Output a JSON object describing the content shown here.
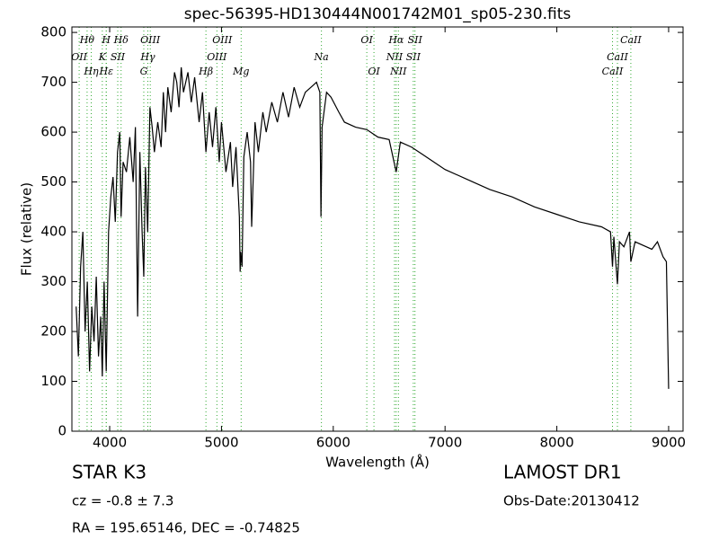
{
  "chart_data": {
    "type": "line",
    "title": "spec-56395-HD130444N001742M01_sp05-230.fits",
    "x_label": "Wavelength (Å)",
    "y_label": "Flux (relative)",
    "xlim": [
      3662,
      9129
    ],
    "ylim": [
      0,
      811
    ],
    "xticks": [
      4000,
      5000,
      6000,
      7000,
      8000,
      9000
    ],
    "yticks": [
      0,
      100,
      200,
      300,
      400,
      500,
      600,
      700,
      800
    ],
    "series": [
      {
        "color": "#000000",
        "x": [
          3700,
          3720,
          3740,
          3760,
          3780,
          3800,
          3820,
          3840,
          3860,
          3880,
          3900,
          3920,
          3934,
          3950,
          3969,
          3990,
          4010,
          4030,
          4050,
          4070,
          4090,
          4102,
          4120,
          4150,
          4180,
          4210,
          4230,
          4250,
          4270,
          4290,
          4305,
          4320,
          4340,
          4360,
          4380,
          4400,
          4430,
          4460,
          4480,
          4500,
          4520,
          4550,
          4580,
          4600,
          4620,
          4640,
          4660,
          4700,
          4730,
          4760,
          4800,
          4830,
          4861,
          4890,
          4920,
          4950,
          4980,
          5000,
          5040,
          5080,
          5100,
          5130,
          5160,
          5167,
          5172,
          5184,
          5200,
          5230,
          5260,
          5270,
          5300,
          5330,
          5370,
          5400,
          5450,
          5500,
          5550,
          5600,
          5650,
          5700,
          5750,
          5800,
          5850,
          5880,
          5890,
          5900,
          5940,
          5980,
          6050,
          6100,
          6200,
          6300,
          6400,
          6500,
          6563,
          6600,
          6700,
          6800,
          6900,
          7000,
          7200,
          7400,
          7600,
          7800,
          8000,
          8200,
          8400,
          8480,
          8498,
          8510,
          8542,
          8560,
          8600,
          8650,
          8662,
          8700,
          8800,
          8850,
          8900,
          8950,
          8980,
          9000
        ],
        "values": [
          250,
          150,
          330,
          400,
          200,
          300,
          120,
          250,
          180,
          310,
          150,
          230,
          110,
          300,
          120,
          400,
          470,
          510,
          420,
          560,
          600,
          430,
          540,
          520,
          590,
          500,
          610,
          230,
          560,
          400,
          310,
          530,
          400,
          650,
          610,
          560,
          620,
          570,
          680,
          600,
          690,
          640,
          720,
          700,
          650,
          730,
          680,
          720,
          660,
          710,
          620,
          680,
          560,
          640,
          570,
          650,
          540,
          620,
          520,
          580,
          490,
          570,
          430,
          320,
          360,
          330,
          550,
          600,
          540,
          410,
          620,
          560,
          640,
          600,
          660,
          620,
          680,
          630,
          690,
          650,
          680,
          690,
          700,
          680,
          430,
          610,
          680,
          670,
          640,
          620,
          610,
          605,
          590,
          585,
          520,
          580,
          570,
          555,
          540,
          525,
          505,
          485,
          470,
          450,
          435,
          420,
          410,
          400,
          330,
          390,
          295,
          380,
          370,
          400,
          340,
          380,
          370,
          365,
          380,
          350,
          340,
          85
        ]
      }
    ],
    "lines": [
      {
        "name": "OII",
        "wavelength": 3727
      },
      {
        "name": "Hθ",
        "wavelength": 3798
      },
      {
        "name": "Hη",
        "wavelength": 3835
      },
      {
        "name": "K",
        "wavelength": 3934
      },
      {
        "name": "H",
        "wavelength": 3969
      },
      {
        "name": "Hε",
        "wavelength": 3970
      },
      {
        "name": "SII",
        "wavelength": 4072
      },
      {
        "name": "Hδ",
        "wavelength": 4102
      },
      {
        "name": "G",
        "wavelength": 4305
      },
      {
        "name": "Hγ",
        "wavelength": 4341
      },
      {
        "name": "OIII",
        "wavelength": 4363
      },
      {
        "name": "Hβ",
        "wavelength": 4861
      },
      {
        "name": "OIII",
        "wavelength": 4959
      },
      {
        "name": "OIII",
        "wavelength": 5007
      },
      {
        "name": "Mg",
        "wavelength": 5176
      },
      {
        "name": "Na",
        "wavelength": 5894
      },
      {
        "name": "OI",
        "wavelength": 6300
      },
      {
        "name": "OI",
        "wavelength": 6364
      },
      {
        "name": "NII",
        "wavelength": 6548
      },
      {
        "name": "Hα",
        "wavelength": 6563
      },
      {
        "name": "NII",
        "wavelength": 6583
      },
      {
        "name": "SII",
        "wavelength": 6716
      },
      {
        "name": "SII",
        "wavelength": 6731
      },
      {
        "name": "CaII",
        "wavelength": 8498
      },
      {
        "name": "CaII",
        "wavelength": 8542
      },
      {
        "name": "CaII",
        "wavelength": 8662
      }
    ],
    "info": {
      "object": "STAR   K3",
      "cz": "cz = -0.8 ± 7.3",
      "survey": "LAMOST DR1",
      "obs_date": "Obs-Date:20130412",
      "coords": "RA = 195.65146, DEC = -0.74825"
    }
  }
}
